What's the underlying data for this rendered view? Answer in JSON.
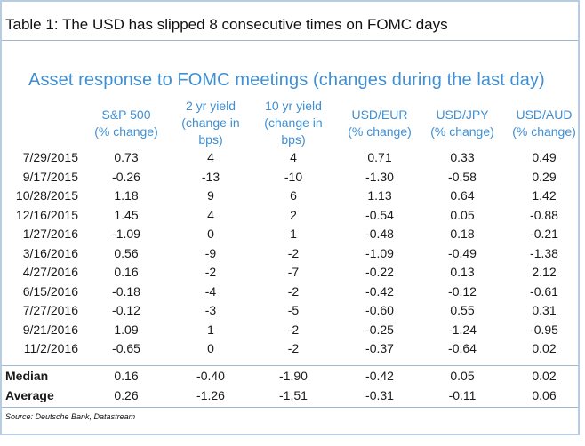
{
  "caption": "Table 1: The USD has slipped 8 consecutive times on FOMC days",
  "subtitle": "Asset response to FOMC meetings (changes during the last day)",
  "columns": [
    [
      "S&P 500",
      "(% change)"
    ],
    [
      "2 yr yield",
      "(change in",
      "bps)"
    ],
    [
      "10 yr yield",
      "(change in",
      "bps)"
    ],
    [
      "USD/EUR",
      "(% change)"
    ],
    [
      "USD/JPY",
      "(% change)"
    ],
    [
      "USD/AUD",
      "(% change)"
    ]
  ],
  "rows": [
    {
      "date": "7/29/2015",
      "values": [
        "0.73",
        "4",
        "4",
        "0.71",
        "0.33",
        "0.49"
      ]
    },
    {
      "date": "9/17/2015",
      "values": [
        "-0.26",
        "-13",
        "-10",
        "-1.30",
        "-0.58",
        "0.29"
      ]
    },
    {
      "date": "10/28/2015",
      "values": [
        "1.18",
        "9",
        "6",
        "1.13",
        "0.64",
        "1.42"
      ]
    },
    {
      "date": "12/16/2015",
      "values": [
        "1.45",
        "4",
        "2",
        "-0.54",
        "0.05",
        "-0.88"
      ]
    },
    {
      "date": "1/27/2016",
      "values": [
        "-1.09",
        "0",
        "1",
        "-0.48",
        "0.18",
        "-0.21"
      ]
    },
    {
      "date": "3/16/2016",
      "values": [
        "0.56",
        "-9",
        "-2",
        "-1.09",
        "-0.49",
        "-1.38"
      ]
    },
    {
      "date": "4/27/2016",
      "values": [
        "0.16",
        "-2",
        "-7",
        "-0.22",
        "0.13",
        "2.12"
      ]
    },
    {
      "date": "6/15/2016",
      "values": [
        "-0.18",
        "-4",
        "-2",
        "-0.42",
        "-0.12",
        "-0.61"
      ]
    },
    {
      "date": "7/27/2016",
      "values": [
        "-0.12",
        "-3",
        "-5",
        "-0.60",
        "0.55",
        "0.31"
      ]
    },
    {
      "date": "9/21/2016",
      "values": [
        "1.09",
        "1",
        "-2",
        "-0.25",
        "-1.24",
        "-0.95"
      ]
    },
    {
      "date": "11/2/2016",
      "values": [
        "-0.65",
        "0",
        "-2",
        "-0.37",
        "-0.64",
        "0.02"
      ]
    }
  ],
  "summary": [
    {
      "label": "Median",
      "values": [
        "0.16",
        "-0.40",
        "-1.90",
        "-0.42",
        "0.05",
        "0.02"
      ]
    },
    {
      "label": "Average",
      "values": [
        "0.26",
        "-1.26",
        "-1.51",
        "-0.31",
        "-0.11",
        "0.06"
      ]
    }
  ],
  "source": "Source: Deutsche Bank, Datastream"
}
